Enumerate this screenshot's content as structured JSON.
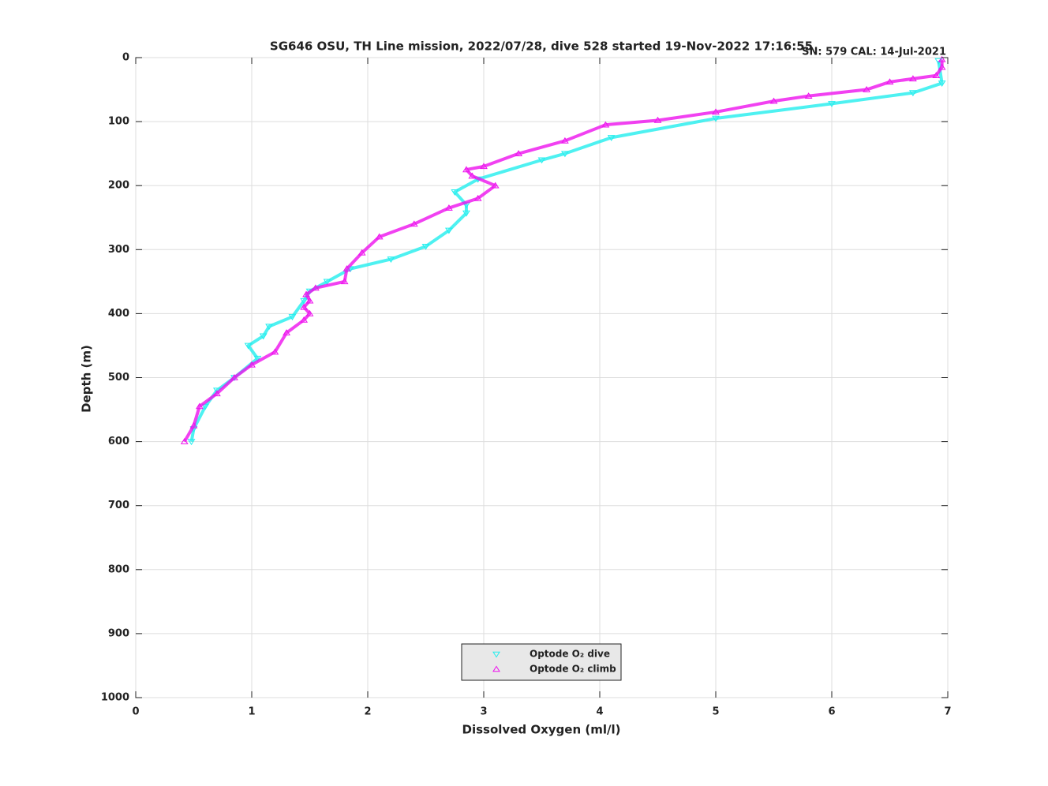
{
  "chart_data": {
    "type": "scatter",
    "title": "SG646 OSU, TH Line mission, 2022/07/28, dive 528 started 19-Nov-2022 17:16:55",
    "annotation": "SN: 579  CAL: 14-Jul-2021",
    "annotation_color": "#8b3a00",
    "x_label": "Dissolved Oxygen (ml/l)",
    "y_label": "Depth (m)",
    "xlim": [
      0,
      7
    ],
    "xticks": [
      0,
      1,
      2,
      3,
      4,
      5,
      6,
      7
    ],
    "ylim": [
      0,
      1000
    ],
    "yticks": [
      0,
      100,
      200,
      300,
      400,
      500,
      600,
      700,
      800,
      900,
      1000
    ],
    "y_reversed": true,
    "grid": true,
    "legend_position": "bottom",
    "series": [
      {
        "name": "Optode O₂ dive",
        "color": "#22eeee",
        "marker": "triangle-down",
        "x": [
          6.92,
          6.95,
          6.7,
          6.0,
          5.0,
          4.1,
          3.7,
          3.5,
          2.95,
          2.75,
          2.85,
          2.85,
          2.7,
          2.5,
          2.2,
          1.85,
          1.65,
          1.5,
          1.45,
          1.35,
          1.15,
          1.1,
          0.97,
          1.05,
          0.85,
          0.7,
          0.6,
          0.5,
          0.48
        ],
        "values": [
          5,
          40,
          55,
          72,
          95,
          125,
          150,
          160,
          190,
          210,
          230,
          243,
          270,
          295,
          315,
          330,
          350,
          365,
          380,
          405,
          420,
          435,
          450,
          470,
          500,
          520,
          545,
          580,
          600
        ]
      },
      {
        "name": "Optode O₂ climb",
        "color": "#ee11ee",
        "marker": "triangle-up",
        "x": [
          0.42,
          0.5,
          0.55,
          0.7,
          0.85,
          1.0,
          1.2,
          1.3,
          1.45,
          1.5,
          1.45,
          1.5,
          1.47,
          1.55,
          1.8,
          1.82,
          1.95,
          2.1,
          2.4,
          2.7,
          2.95,
          3.1,
          2.9,
          2.85,
          3.0,
          3.3,
          3.7,
          4.05,
          4.5,
          5.0,
          5.5,
          5.8,
          6.3,
          6.5,
          6.7,
          6.9,
          6.95,
          6.95
        ],
        "values": [
          600,
          575,
          545,
          525,
          500,
          480,
          460,
          430,
          410,
          400,
          390,
          380,
          370,
          360,
          350,
          330,
          305,
          280,
          260,
          235,
          220,
          200,
          185,
          175,
          170,
          150,
          130,
          105,
          98,
          85,
          68,
          60,
          50,
          38,
          33,
          28,
          15,
          3
        ]
      }
    ]
  }
}
